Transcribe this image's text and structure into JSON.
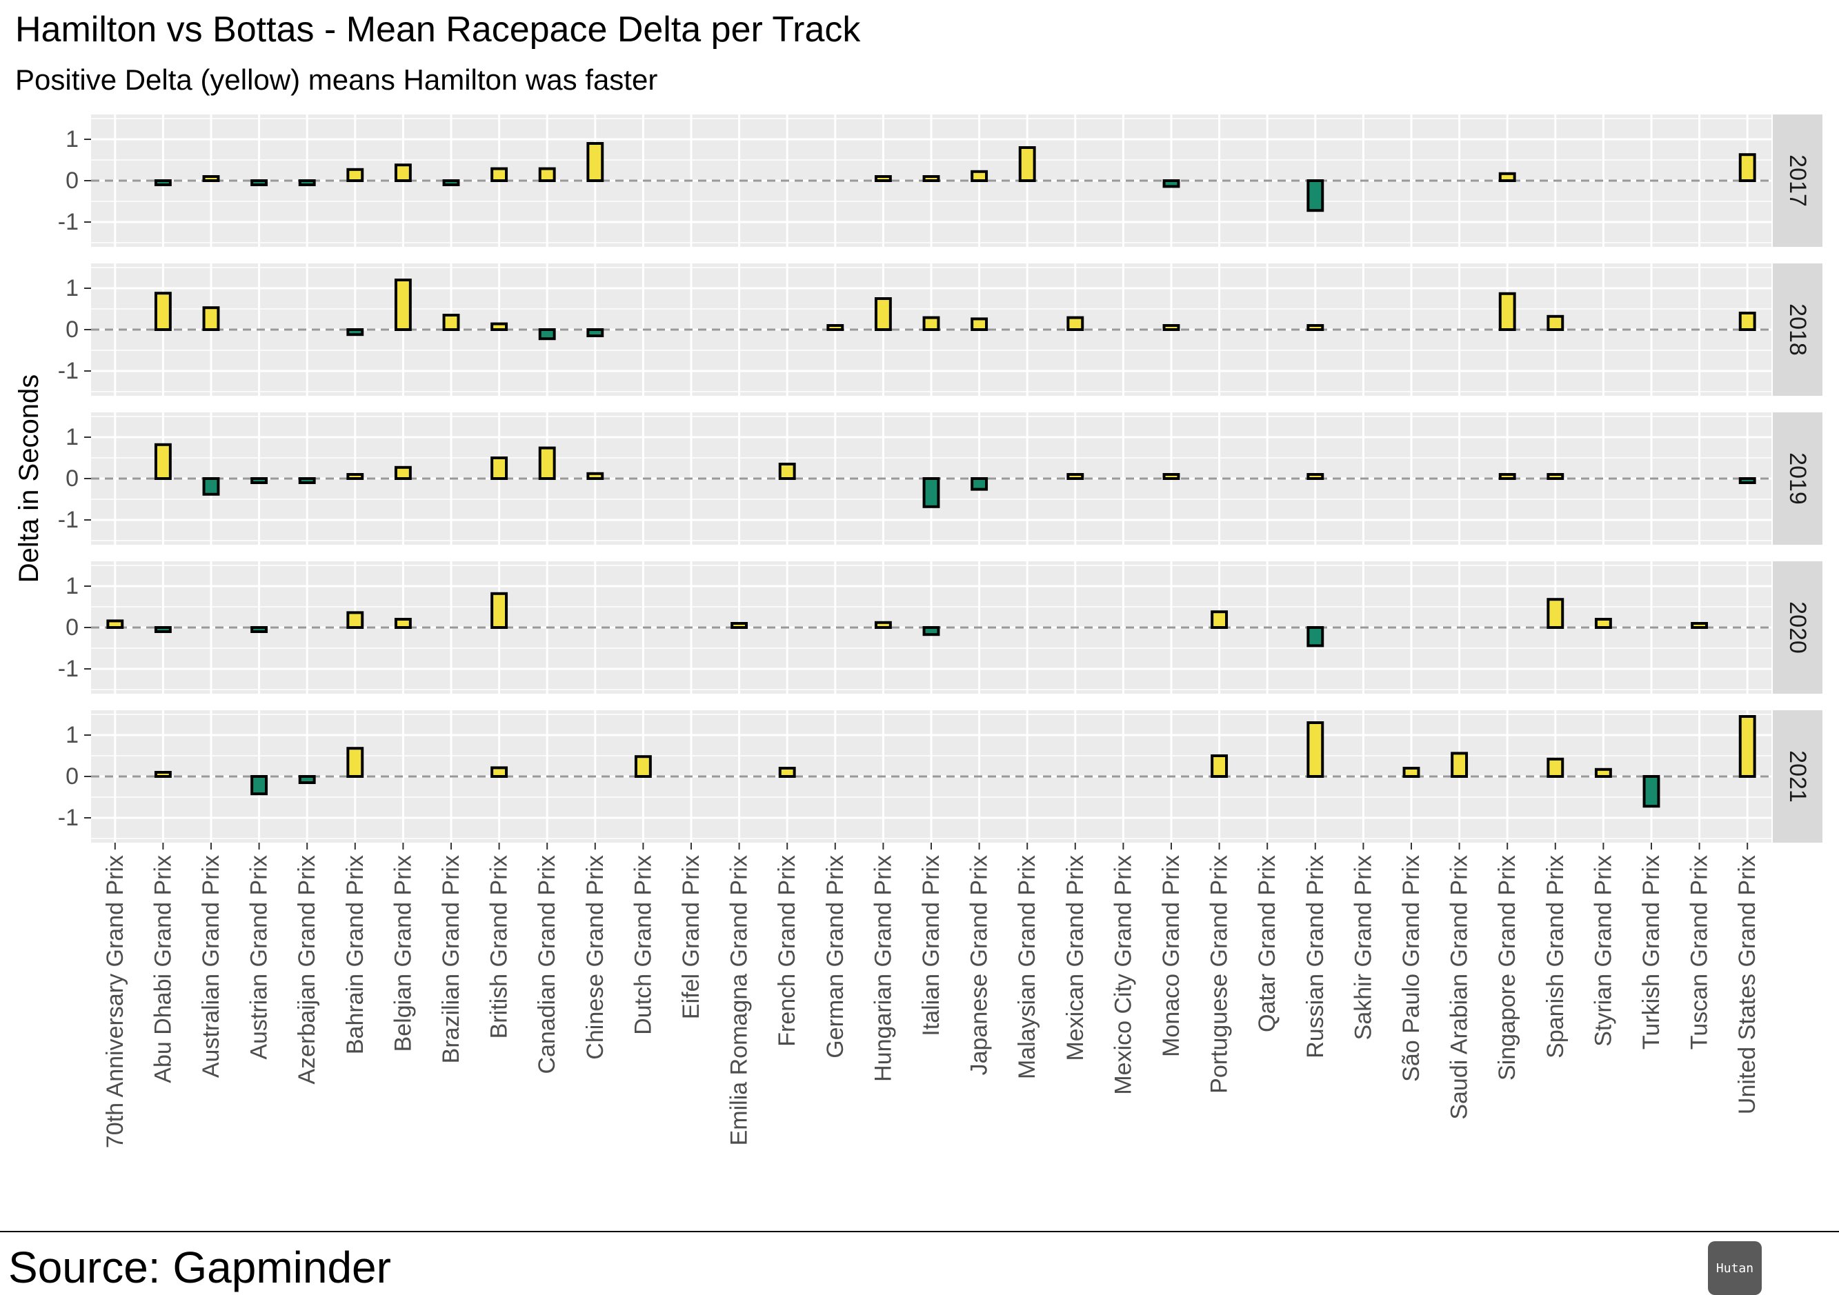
{
  "chart_data": {
    "type": "bar",
    "title": "Hamilton vs Bottas - Mean Racepace Delta per Track",
    "subtitle": "Positive Delta (yellow) means Hamilton was faster",
    "ylabel": "Delta in Seconds",
    "xlabel": "",
    "ylim": [
      -1.6,
      1.6
    ],
    "yticks": [
      1,
      0,
      -1
    ],
    "grid": true,
    "legend": "none",
    "colors": {
      "positive": "#f2e140",
      "negative": "#178a6b",
      "outline": "#000000",
      "panel": "#ebebeb",
      "strip": "#d9d9d9",
      "zeroline": "#999999"
    },
    "categories": [
      "70th Anniversary Grand Prix",
      "Abu Dhabi Grand Prix",
      "Australian Grand Prix",
      "Austrian Grand Prix",
      "Azerbaijan Grand Prix",
      "Bahrain Grand Prix",
      "Belgian Grand Prix",
      "Brazilian Grand Prix",
      "British Grand Prix",
      "Canadian Grand Prix",
      "Chinese Grand Prix",
      "Dutch Grand Prix",
      "Eifel Grand Prix",
      "Emilia Romagna Grand Prix",
      "French Grand Prix",
      "German Grand Prix",
      "Hungarian Grand Prix",
      "Italian Grand Prix",
      "Japanese Grand Prix",
      "Malaysian Grand Prix",
      "Mexican Grand Prix",
      "Mexico City Grand Prix",
      "Monaco Grand Prix",
      "Portuguese Grand Prix",
      "Qatar Grand Prix",
      "Russian Grand Prix",
      "Sakhir Grand Prix",
      "São Paulo Grand Prix",
      "Saudi Arabian Grand Prix",
      "Singapore Grand Prix",
      "Spanish Grand Prix",
      "Styrian Grand Prix",
      "Turkish Grand Prix",
      "Tuscan Grand Prix",
      "United States Grand Prix"
    ],
    "series": [
      {
        "name": "2017",
        "values": [
          null,
          -0.08,
          0.03,
          -0.1,
          -0.07,
          0.27,
          0.38,
          -0.05,
          0.29,
          0.29,
          0.9,
          null,
          null,
          null,
          null,
          null,
          0.02,
          0.1,
          0.22,
          0.8,
          null,
          null,
          -0.14,
          null,
          null,
          -0.72,
          null,
          null,
          null,
          0.17,
          null,
          null,
          null,
          null,
          0.63
        ]
      },
      {
        "name": "2018",
        "values": [
          null,
          0.88,
          0.53,
          null,
          null,
          -0.12,
          1.2,
          0.35,
          0.14,
          -0.22,
          -0.15,
          null,
          null,
          null,
          null,
          0.1,
          0.75,
          0.29,
          0.26,
          null,
          0.29,
          null,
          0.03,
          null,
          null,
          0.08,
          null,
          null,
          null,
          0.87,
          0.32,
          null,
          null,
          null,
          0.4
        ]
      },
      {
        "name": "2019",
        "values": [
          null,
          0.82,
          -0.38,
          -0.06,
          -0.04,
          0.06,
          0.27,
          null,
          0.5,
          0.74,
          0.12,
          null,
          null,
          null,
          0.35,
          null,
          null,
          -0.68,
          -0.26,
          null,
          0.06,
          null,
          0.04,
          null,
          null,
          0.08,
          null,
          null,
          null,
          0.03,
          0.06,
          null,
          null,
          null,
          -0.07
        ]
      },
      {
        "name": "2020",
        "values": [
          0.16,
          -0.05,
          null,
          -0.03,
          null,
          0.36,
          0.2,
          null,
          0.82,
          null,
          null,
          null,
          null,
          0.09,
          null,
          null,
          0.12,
          -0.17,
          null,
          null,
          null,
          null,
          null,
          0.38,
          null,
          -0.44,
          null,
          null,
          null,
          null,
          0.68,
          0.2,
          null,
          0.09,
          null
        ]
      },
      {
        "name": "2021",
        "values": [
          null,
          0.1,
          null,
          -0.42,
          -0.15,
          0.68,
          null,
          null,
          0.21,
          null,
          null,
          0.48,
          null,
          null,
          0.2,
          null,
          null,
          null,
          null,
          null,
          null,
          null,
          null,
          0.5,
          null,
          1.3,
          null,
          0.2,
          0.56,
          null,
          0.42,
          0.17,
          -0.72,
          null,
          1.45
        ]
      }
    ]
  },
  "footer": {
    "source": "Source: Gapminder",
    "brand": "Hutan"
  }
}
